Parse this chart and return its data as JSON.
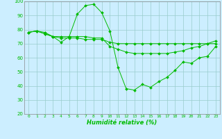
{
  "xlabel": "Humidité relative (%)",
  "background_color": "#cceeff",
  "grid_color": "#99cccc",
  "line_color": "#00bb00",
  "xlim_min": -0.5,
  "xlim_max": 23.5,
  "ylim_min": 20,
  "ylim_max": 100,
  "yticks": [
    20,
    30,
    40,
    50,
    60,
    70,
    80,
    90,
    100
  ],
  "xticks": [
    0,
    1,
    2,
    3,
    4,
    5,
    6,
    7,
    8,
    9,
    10,
    11,
    12,
    13,
    14,
    15,
    16,
    17,
    18,
    19,
    20,
    21,
    22,
    23
  ],
  "series1": [
    78,
    79,
    78,
    75,
    71,
    75,
    91,
    97,
    98,
    92,
    79,
    53,
    38,
    37,
    41,
    39,
    43,
    46,
    51,
    57,
    56,
    60,
    61,
    68
  ],
  "series2": [
    78,
    79,
    77,
    75,
    75,
    75,
    75,
    75,
    74,
    74,
    68,
    66,
    64,
    63,
    63,
    63,
    63,
    63,
    64,
    65,
    67,
    68,
    70,
    72
  ],
  "series3": [
    78,
    79,
    77,
    75,
    74,
    74,
    74,
    73,
    73,
    73,
    71,
    70,
    70,
    70,
    70,
    70,
    70,
    70,
    70,
    70,
    70,
    70,
    70,
    70
  ]
}
